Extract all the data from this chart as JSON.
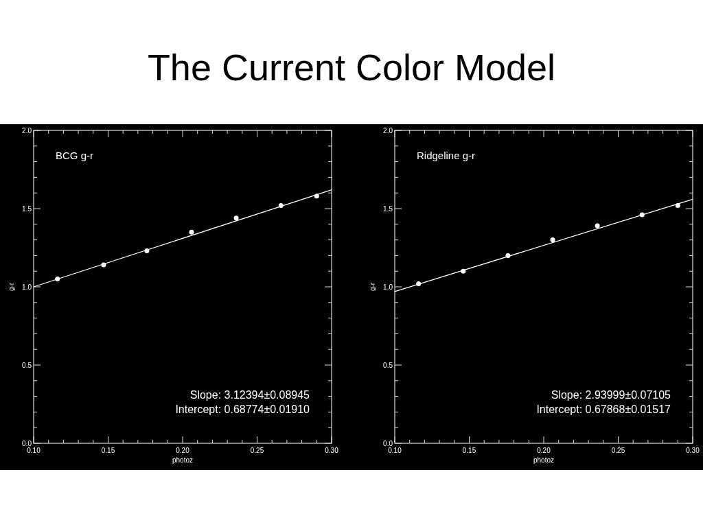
{
  "chart_data": [
    {
      "type": "scatter",
      "title": "The Current Color Model",
      "xlabel": "photoz",
      "ylabel": "g-r",
      "xlim": [
        0.1,
        0.3
      ],
      "ylim": [
        0,
        2
      ],
      "xticks": [
        {
          "value": 0.1,
          "label": "0.10"
        },
        {
          "value": 0.11,
          "label": null
        },
        {
          "value": 0.12,
          "label": null
        },
        {
          "value": 0.13,
          "label": null
        },
        {
          "value": 0.14,
          "label": null
        },
        {
          "value": 0.15,
          "label": "0.15"
        },
        {
          "value": 0.16,
          "label": null
        },
        {
          "value": 0.17,
          "label": null
        },
        {
          "value": 0.18,
          "label": null
        },
        {
          "value": 0.19,
          "label": null
        },
        {
          "value": 0.2,
          "label": "0.20"
        },
        {
          "value": 0.21,
          "label": null
        },
        {
          "value": 0.22,
          "label": null
        },
        {
          "value": 0.23,
          "label": null
        },
        {
          "value": 0.24,
          "label": null
        },
        {
          "value": 0.25,
          "label": "0.25"
        },
        {
          "value": 0.26,
          "label": null
        },
        {
          "value": 0.27,
          "label": null
        },
        {
          "value": 0.28,
          "label": null
        },
        {
          "value": 0.29,
          "label": null
        },
        {
          "value": 0.3,
          "label": "0.30"
        }
      ],
      "yticks": [
        {
          "value": 0,
          "label": "0.0"
        },
        {
          "value": 0.1,
          "label": null
        },
        {
          "value": 0.2,
          "label": null
        },
        {
          "value": 0.3,
          "label": null
        },
        {
          "value": 0.4,
          "label": null
        },
        {
          "value": 0.5,
          "label": "0.5"
        },
        {
          "value": 0.6,
          "label": null
        },
        {
          "value": 0.7,
          "label": null
        },
        {
          "value": 0.8,
          "label": null
        },
        {
          "value": 0.9,
          "label": null
        },
        {
          "value": 1,
          "label": "1.0"
        },
        {
          "value": 1.1,
          "label": null
        },
        {
          "value": 1.2,
          "label": null
        },
        {
          "value": 1.3,
          "label": null
        },
        {
          "value": 1.4,
          "label": null
        },
        {
          "value": 1.5,
          "label": "1.5"
        },
        {
          "value": 1.6,
          "label": null
        },
        {
          "value": 1.7,
          "label": null
        },
        {
          "value": 1.8,
          "label": null
        },
        {
          "value": 1.9,
          "label": null
        },
        {
          "value": 2,
          "label": "2.0"
        }
      ],
      "marker": "circle",
      "series": [
        {
          "color": "#ffffff",
          "x": [
            0.116,
            0.147,
            0.176,
            0.206,
            0.236,
            0.266,
            0.29
          ],
          "values": [
            1.05,
            1.14,
            1.23,
            1.35,
            1.44,
            1.52,
            1.58
          ]
        },
        {
          "type": "line",
          "marker": "none",
          "color": "#ffffff",
          "x": [
            0.1,
            0.3
          ],
          "values": [
            1.0,
            1.62
          ]
        }
      ],
      "annotations": [
        "BCG g-r",
        "Slope: 3.12394±0.08945",
        "Intercept: 0.68774±0.01910"
      ]
    },
    {
      "type": "scatter",
      "xlabel": "photoz",
      "ylabel": "g-r",
      "xlim": [
        0.1,
        0.3
      ],
      "ylim": [
        0,
        2
      ],
      "xticks": [
        {
          "value": 0.1,
          "label": "0.10"
        },
        {
          "value": 0.11,
          "label": null
        },
        {
          "value": 0.12,
          "label": null
        },
        {
          "value": 0.13,
          "label": null
        },
        {
          "value": 0.14,
          "label": null
        },
        {
          "value": 0.15,
          "label": "0.15"
        },
        {
          "value": 0.16,
          "label": null
        },
        {
          "value": 0.17,
          "label": null
        },
        {
          "value": 0.18,
          "label": null
        },
        {
          "value": 0.19,
          "label": null
        },
        {
          "value": 0.2,
          "label": "0.20"
        },
        {
          "value": 0.21,
          "label": null
        },
        {
          "value": 0.22,
          "label": null
        },
        {
          "value": 0.23,
          "label": null
        },
        {
          "value": 0.24,
          "label": null
        },
        {
          "value": 0.25,
          "label": "0.25"
        },
        {
          "value": 0.26,
          "label": null
        },
        {
          "value": 0.27,
          "label": null
        },
        {
          "value": 0.28,
          "label": null
        },
        {
          "value": 0.29,
          "label": null
        },
        {
          "value": 0.3,
          "label": "0.30"
        }
      ],
      "yticks": [
        {
          "value": 0,
          "label": "0.0"
        },
        {
          "value": 0.1,
          "label": null
        },
        {
          "value": 0.2,
          "label": null
        },
        {
          "value": 0.3,
          "label": null
        },
        {
          "value": 0.4,
          "label": null
        },
        {
          "value": 0.5,
          "label": "0.5"
        },
        {
          "value": 0.6,
          "label": null
        },
        {
          "value": 0.7,
          "label": null
        },
        {
          "value": 0.8,
          "label": null
        },
        {
          "value": 0.9,
          "label": null
        },
        {
          "value": 1,
          "label": "1.0"
        },
        {
          "value": 1.1,
          "label": null
        },
        {
          "value": 1.2,
          "label": null
        },
        {
          "value": 1.3,
          "label": null
        },
        {
          "value": 1.4,
          "label": null
        },
        {
          "value": 1.5,
          "label": "1.5"
        },
        {
          "value": 1.6,
          "label": null
        },
        {
          "value": 1.7,
          "label": null
        },
        {
          "value": 1.8,
          "label": null
        },
        {
          "value": 1.9,
          "label": null
        },
        {
          "value": 2,
          "label": "2.0"
        }
      ],
      "marker": "circle",
      "series": [
        {
          "color": "#ffffff",
          "x": [
            0.116,
            0.146,
            0.176,
            0.206,
            0.236,
            0.266,
            0.29
          ],
          "values": [
            1.02,
            1.1,
            1.2,
            1.3,
            1.39,
            1.46,
            1.52
          ]
        },
        {
          "type": "line",
          "marker": "none",
          "color": "#ffffff",
          "x": [
            0.1,
            0.3
          ],
          "values": [
            0.97,
            1.56
          ]
        }
      ],
      "annotations": [
        "Ridgeline g-r",
        "Slope: 2.93999±0.07105",
        "Intercept: 0.67868±0.01517"
      ]
    }
  ]
}
